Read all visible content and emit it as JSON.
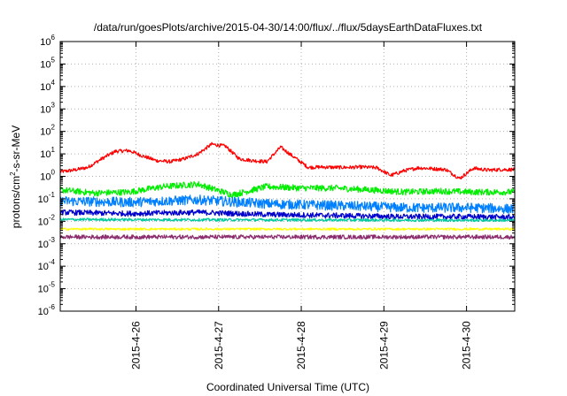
{
  "chart_data": {
    "type": "line",
    "title": "/data/run/goesPlots/archive/2015-04-30/14:00/flux/../flux/5daysEarthDataFluxes.txt",
    "xlabel": "Coordinated Universal Time (UTC)",
    "ylabel_parts": [
      "protons/cm",
      "2",
      "-s-sr-MeV"
    ],
    "y_scale": "log",
    "ylim_exponents": [
      -6,
      6
    ],
    "y_ticks": [
      {
        "base": "10",
        "exp": "-6"
      },
      {
        "base": "10",
        "exp": "-5"
      },
      {
        "base": "10",
        "exp": "-4"
      },
      {
        "base": "10",
        "exp": "-3"
      },
      {
        "base": "10",
        "exp": "-2"
      },
      {
        "base": "10",
        "exp": "-1"
      },
      {
        "base": "10",
        "exp": "0"
      },
      {
        "base": "10",
        "exp": "1"
      },
      {
        "base": "10",
        "exp": "2"
      },
      {
        "base": "10",
        "exp": "3"
      },
      {
        "base": "10",
        "exp": "4"
      },
      {
        "base": "10",
        "exp": "5"
      },
      {
        "base": "10",
        "exp": "6"
      }
    ],
    "x_start": "2015-04-25 02:00",
    "x_end": "2015-04-30 14:00",
    "x_ticks": [
      {
        "label": "2015-4-26",
        "date": "2015-04-26"
      },
      {
        "label": "2015-4-27",
        "date": "2015-04-27"
      },
      {
        "label": "2015-4-28",
        "date": "2015-04-28"
      },
      {
        "label": "2015-4-29",
        "date": "2015-04-29"
      },
      {
        "label": "2015-4-30",
        "date": "2015-04-30"
      }
    ],
    "grid": true,
    "series": [
      {
        "color": "#ff0000",
        "x": [
          "2015-04-25 02:00",
          "2015-04-25 06:00",
          "2015-04-25 10:00",
          "2015-04-25 14:00",
          "2015-04-25 18:00",
          "2015-04-25 22:00",
          "2015-04-26 02:00",
          "2015-04-26 06:00",
          "2015-04-26 10:00",
          "2015-04-26 14:00",
          "2015-04-26 18:00",
          "2015-04-26 22:00",
          "2015-04-27 02:00",
          "2015-04-27 06:00",
          "2015-04-27 10:00",
          "2015-04-27 14:00",
          "2015-04-27 18:00",
          "2015-04-27 22:00",
          "2015-04-28 02:00",
          "2015-04-28 06:00",
          "2015-04-28 10:00",
          "2015-04-28 14:00",
          "2015-04-28 18:00",
          "2015-04-28 22:00",
          "2015-04-29 02:00",
          "2015-04-29 06:00",
          "2015-04-29 10:00",
          "2015-04-29 14:00",
          "2015-04-29 18:00",
          "2015-04-29 22:00",
          "2015-04-30 02:00",
          "2015-04-30 06:00",
          "2015-04-30 10:00",
          "2015-04-30 14:00"
        ],
        "y": [
          1.6,
          1.9,
          2.5,
          6,
          13,
          14,
          8,
          5,
          4.5,
          6,
          10,
          27,
          22,
          6,
          5,
          4.5,
          20,
          7,
          2.5,
          2.6,
          2.5,
          2.5,
          2.6,
          2.4,
          1.1,
          1.8,
          2.4,
          2.2,
          2.0,
          0.8,
          2.3,
          1.9,
          2.0,
          2.0
        ],
        "noise": 0.08
      },
      {
        "color": "#00ee00",
        "x": [
          "2015-04-25 02:00",
          "2015-04-25 12:00",
          "2015-04-25 22:00",
          "2015-04-26 08:00",
          "2015-04-26 18:00",
          "2015-04-27 04:00",
          "2015-04-27 14:00",
          "2015-04-28 00:00",
          "2015-04-28 10:00",
          "2015-04-28 20:00",
          "2015-04-29 06:00",
          "2015-04-29 16:00",
          "2015-04-30 02:00",
          "2015-04-30 14:00"
        ],
        "y": [
          0.25,
          0.18,
          0.2,
          0.35,
          0.45,
          0.15,
          0.35,
          0.3,
          0.3,
          0.25,
          0.2,
          0.22,
          0.2,
          0.2
        ],
        "noise": 0.14
      },
      {
        "color": "#0080ff",
        "x": [
          "2015-04-25 02:00",
          "2015-04-25 22:00",
          "2015-04-26 18:00",
          "2015-04-27 14:00",
          "2015-04-28 10:00",
          "2015-04-29 06:00",
          "2015-04-30 02:00",
          "2015-04-30 14:00"
        ],
        "y": [
          0.08,
          0.07,
          0.09,
          0.06,
          0.05,
          0.04,
          0.04,
          0.035
        ],
        "noise": 0.22
      },
      {
        "color": "#0000cc",
        "x": [
          "2015-04-25 02:00",
          "2015-04-25 22:00",
          "2015-04-26 18:00",
          "2015-04-27 14:00",
          "2015-04-28 10:00",
          "2015-04-29 06:00",
          "2015-04-30 02:00",
          "2015-04-30 14:00"
        ],
        "y": [
          0.025,
          0.022,
          0.025,
          0.02,
          0.018,
          0.016,
          0.016,
          0.015
        ],
        "noise": 0.12
      },
      {
        "color": "#00c8a0",
        "x": [
          "2015-04-25 02:00",
          "2015-04-30 14:00"
        ],
        "y": [
          0.012,
          0.011
        ],
        "noise": 0.06
      },
      {
        "color": "#ffff00",
        "x": [
          "2015-04-25 02:00",
          "2015-04-30 14:00"
        ],
        "y": [
          0.0045,
          0.0045
        ],
        "noise": 0.05
      },
      {
        "color": "#8b2c6e",
        "x": [
          "2015-04-25 02:00",
          "2015-04-30 14:00"
        ],
        "y": [
          0.002,
          0.002
        ],
        "noise": 0.09
      }
    ]
  }
}
